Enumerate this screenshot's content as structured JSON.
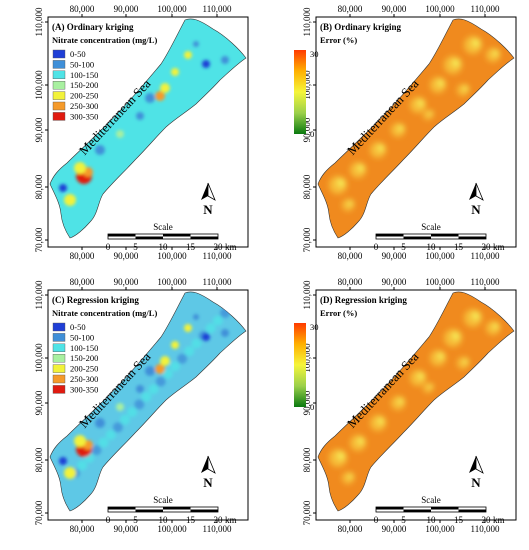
{
  "x_ticks": [
    "80,000",
    "90,000",
    "100,000",
    "110,000"
  ],
  "y_ticks": [
    "110,000",
    "100,000",
    "90,000",
    "80,000",
    "70,000"
  ],
  "sea_label": "Mediterranean Sea",
  "north_label": "N",
  "scale": {
    "title": "Scale",
    "ticks": [
      "0",
      "5",
      "10",
      "15",
      "20"
    ],
    "unit": "km"
  },
  "panels": [
    {
      "id": "A",
      "title": "(A) Ordinary kriging",
      "legend_title": "Nitrate concentration (mg/L)",
      "legend": [
        {
          "label": "0-50",
          "color": "#1f3fd6"
        },
        {
          "label": "50-100",
          "color": "#3f8fd8"
        },
        {
          "label": "100-150",
          "color": "#4fe3e6"
        },
        {
          "label": "150-200",
          "color": "#a8f0a0"
        },
        {
          "label": "200-250",
          "color": "#f2f23a"
        },
        {
          "label": "250-300",
          "color": "#f59a2a"
        },
        {
          "label": "300-350",
          "color": "#e01a10"
        }
      ]
    },
    {
      "id": "B",
      "title": "(B) Ordinary kriging",
      "legend_title": "Error (%)",
      "gradient": {
        "max": "30",
        "min": "0",
        "colors": [
          "#ff3a00",
          "#ffb000",
          "#f5f53a",
          "#9bd04a",
          "#0a7a10"
        ]
      }
    },
    {
      "id": "C",
      "title": "(C) Regression kriging",
      "legend_title": "Nitrate concentration (mg/L)",
      "legend": [
        {
          "label": "0-50",
          "color": "#1f3fd6"
        },
        {
          "label": "50-100",
          "color": "#3f8fd8"
        },
        {
          "label": "100-150",
          "color": "#4fe3e6"
        },
        {
          "label": "150-200",
          "color": "#a8f0a0"
        },
        {
          "label": "200-250",
          "color": "#f2f23a"
        },
        {
          "label": "250-300",
          "color": "#f59a2a"
        },
        {
          "label": "300-350",
          "color": "#e01a10"
        }
      ]
    },
    {
      "id": "D",
      "title": "(D) Regression kriging",
      "legend_title": "Error (%)",
      "gradient": {
        "max": "30",
        "min": "0",
        "colors": [
          "#ff3a00",
          "#ffb000",
          "#f5f53a",
          "#9bd04a",
          "#0a7a10"
        ]
      }
    }
  ]
}
